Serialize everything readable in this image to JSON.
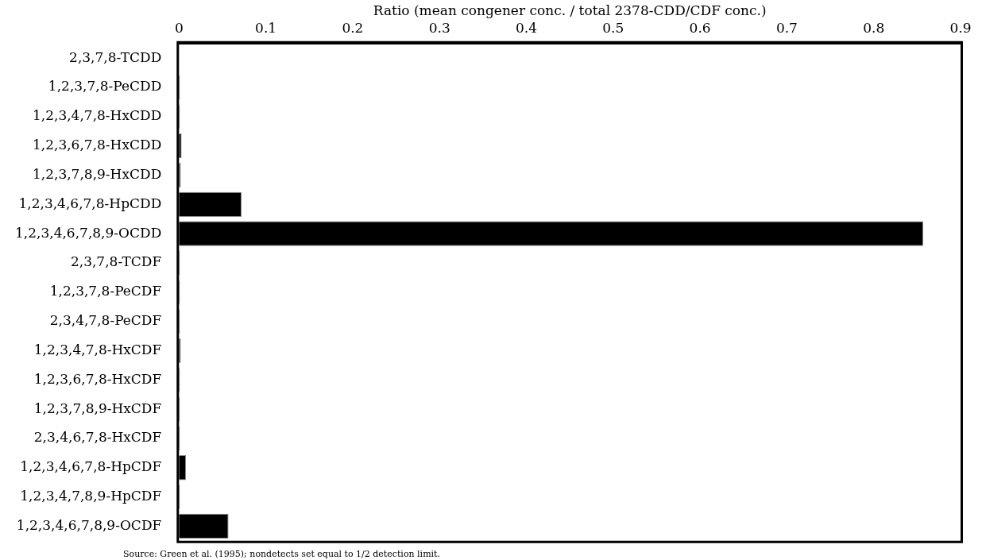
{
  "chart_data": {
    "type": "bar",
    "orientation": "horizontal",
    "xlabel": "Ratio (mean congener conc. / total 2378-CDD/CDF conc.)",
    "categories": [
      "2,3,7,8-TCDD",
      "1,2,3,7,8-PeCDD",
      "1,2,3,4,7,8-HxCDD",
      "1,2,3,6,7,8-HxCDD",
      "1,2,3,7,8,9-HxCDD",
      "1,2,3,4,6,7,8-HpCDD",
      "1,2,3,4,6,7,8,9-OCDD",
      "2,3,7,8-TCDF",
      "1,2,3,7,8-PeCDF",
      "2,3,4,7,8-PeCDF",
      "1,2,3,4,7,8-HxCDF",
      "1,2,3,6,7,8-HxCDF",
      "1,2,3,7,8,9-HxCDF",
      "2,3,4,6,7,8-HxCDF",
      "1,2,3,4,6,7,8-HpCDF",
      "1,2,3,4,7,8,9-HpCDF",
      "1,2,3,4,6,7,8,9-OCDF"
    ],
    "values": [
      0,
      0.001,
      0.001,
      0.003,
      0.002,
      0.072,
      0.857,
      0.001,
      0.001,
      0.001,
      0.002,
      0.001,
      0.001,
      0.001,
      0.008,
      0.001,
      0.057
    ],
    "color": "#000000",
    "xlim": [
      0,
      0.9
    ],
    "xticks": [
      0,
      0.1,
      0.2,
      0.3,
      0.4,
      0.5,
      0.6,
      0.7,
      0.8,
      0.9
    ],
    "grid": false,
    "legend": false,
    "annotations": [
      "Source: Green et al. (1995); nondetects set equal to 1/2 detection limit."
    ]
  }
}
